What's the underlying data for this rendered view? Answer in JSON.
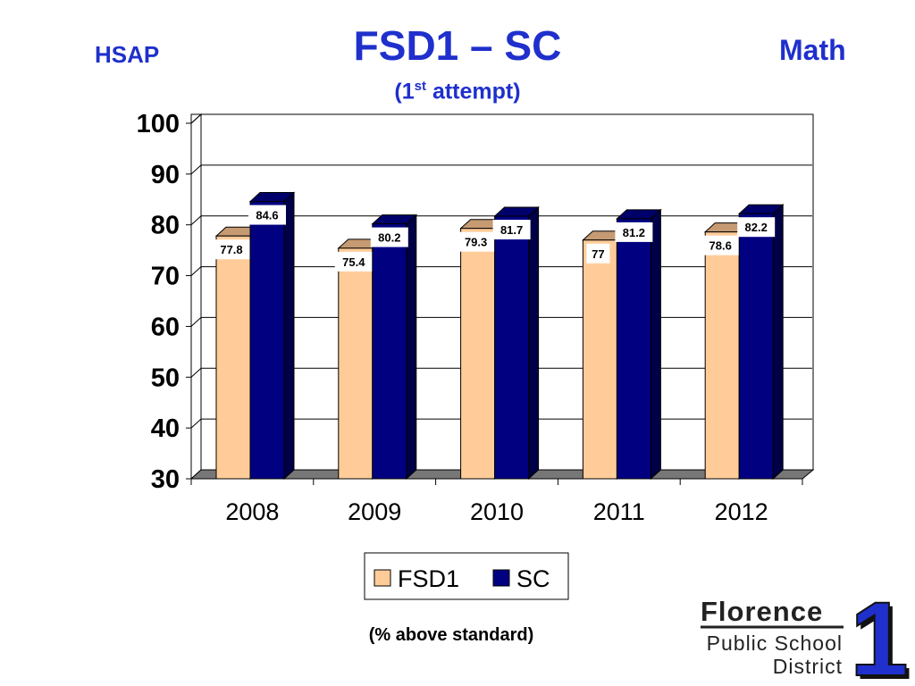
{
  "slide": {
    "left_label": "HSAP",
    "title": "FSD1 – SC",
    "subtitle_pre": "(1",
    "subtitle_sup": "st",
    "subtitle_post": " attempt)",
    "right_label": "Math",
    "footnote": "(% above standard)"
  },
  "logo": {
    "line1": "Florence",
    "line2": "Public School",
    "line3": "District",
    "numeral": "1"
  },
  "colors": {
    "title": "#1f30cc",
    "fsd1": "#ffcc99",
    "sc": "#000080",
    "floor": "#777777"
  },
  "chart_data": {
    "type": "bar",
    "categories": [
      "2008",
      "2009",
      "2010",
      "2011",
      "2012"
    ],
    "series": [
      {
        "name": "FSD1",
        "values": [
          77.8,
          75.4,
          79.3,
          77,
          78.6
        ]
      },
      {
        "name": "SC",
        "values": [
          84.6,
          80.2,
          81.7,
          81.2,
          82.2
        ]
      }
    ],
    "ylim": [
      30,
      100
    ],
    "yticks": [
      "30",
      "40",
      "50",
      "60",
      "70",
      "80",
      "90",
      "100"
    ],
    "grid": true,
    "legend_position": "bottom",
    "data_labels": true,
    "style": "3d-clustered-column"
  }
}
